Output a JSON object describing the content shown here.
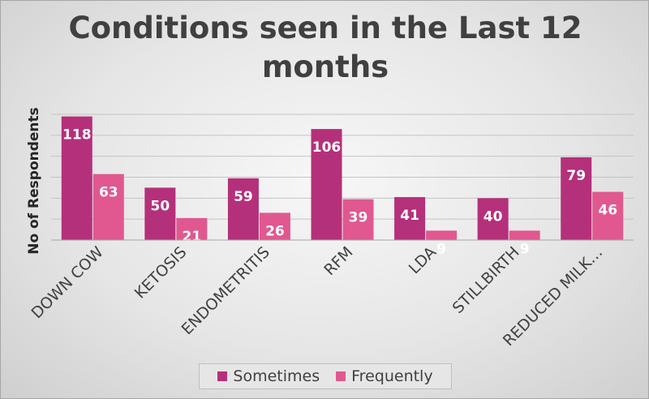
{
  "chart_data": {
    "type": "bar",
    "title": "Conditions seen in the Last 12 months",
    "ylabel": "No of Respondents",
    "xlabel": "",
    "categories": [
      "DOWN COW",
      "KETOSIS",
      "ENDOMETRITIS",
      "RFM",
      "LDA",
      "STILLBIRTH",
      "REDUCED MILK…"
    ],
    "series": [
      {
        "name": "Sometimes",
        "color": "#b5307a",
        "values": [
          118,
          50,
          59,
          106,
          41,
          40,
          79
        ]
      },
      {
        "name": "Frequently",
        "color": "#e0588f",
        "values": [
          63,
          21,
          26,
          39,
          9,
          9,
          46
        ]
      }
    ],
    "ylim": [
      0,
      120
    ],
    "grid": true,
    "legend_position": "bottom",
    "data_labels": true
  }
}
